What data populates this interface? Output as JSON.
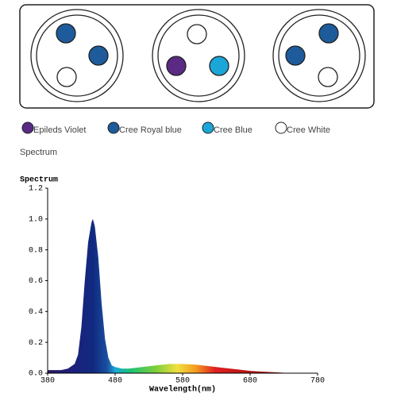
{
  "legend": [
    {
      "label": "Epileds Violet",
      "color": "#5a2a84"
    },
    {
      "label": "Cree Royal blue",
      "color": "#1d5b9b"
    },
    {
      "label": "Cree Blue",
      "color": "#1ba6d8"
    },
    {
      "label": "Cree White",
      "color": "#ffffff"
    }
  ],
  "section_title": "Spectrum",
  "chart_data": {
    "type": "area",
    "y_label": "Spectrum",
    "x_label": "Wavelength(nm)",
    "x": [
      380,
      400,
      410,
      420,
      425,
      430,
      435,
      440,
      445,
      447,
      450,
      455,
      460,
      465,
      470,
      475,
      480,
      490,
      500,
      520,
      540,
      560,
      580,
      600,
      620,
      640,
      660,
      680,
      700,
      720,
      740,
      760,
      780
    ],
    "values": [
      0.02,
      0.02,
      0.03,
      0.06,
      0.12,
      0.3,
      0.6,
      0.85,
      0.98,
      1.0,
      0.95,
      0.75,
      0.45,
      0.22,
      0.1,
      0.05,
      0.04,
      0.03,
      0.03,
      0.04,
      0.05,
      0.06,
      0.06,
      0.055,
      0.045,
      0.035,
      0.025,
      0.015,
      0.01,
      0.005,
      0.0,
      0.0,
      0.0
    ],
    "xlim": [
      380,
      780
    ],
    "ylim": [
      0,
      1.2
    ],
    "xticks": [
      380,
      480,
      580,
      680,
      780
    ],
    "yticks": [
      {
        "value": 0,
        "label": "0.0"
      },
      {
        "value": 0.2,
        "label": "0.2"
      },
      {
        "value": 0.4,
        "label": "0.4"
      },
      {
        "value": 0.6,
        "label": "0.6"
      },
      {
        "value": 0.8,
        "label": "0.8"
      },
      {
        "value": 1,
        "label": "1.0"
      },
      {
        "value": 1.2,
        "label": "1.2"
      }
    ]
  }
}
